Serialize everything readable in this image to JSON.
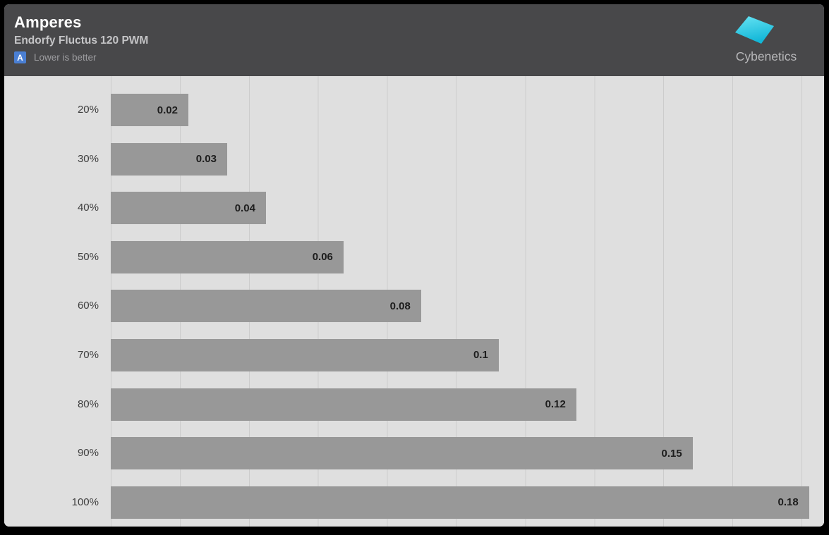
{
  "header": {
    "title": "Amperes",
    "subtitle": "Endorfy Fluctus 120 PWM",
    "badge_letter": "A",
    "note": "Lower is better",
    "brand": "Cybenetics"
  },
  "colors": {
    "header_bg": "#48484a",
    "chart_bg": "#dfdfdf",
    "gridline": "#cccccc",
    "bar": "#989898",
    "value_text": "#1d1d1d",
    "badge_blue": "#4a7fd3",
    "logo_cyan_light": "#66e3f3",
    "logo_cyan_dark": "#12b7d8"
  },
  "chart_data": {
    "type": "bar",
    "orientation": "horizontal",
    "title": "Amperes",
    "subtitle": "Endorfy Fluctus 120 PWM",
    "note": "Lower is better",
    "categories": [
      "20%",
      "30%",
      "40%",
      "50%",
      "60%",
      "70%",
      "80%",
      "90%",
      "100%"
    ],
    "values": [
      0.02,
      0.03,
      0.04,
      0.06,
      0.08,
      0.1,
      0.12,
      0.15,
      0.18
    ],
    "value_labels": [
      "0.02",
      "0.03",
      "0.04",
      "0.06",
      "0.08",
      "0.1",
      "0.12",
      "0.15",
      "0.18"
    ],
    "axis_max": 0.18,
    "xlim": [
      0,
      0.18
    ],
    "grid": "vertical",
    "legend": "none"
  }
}
